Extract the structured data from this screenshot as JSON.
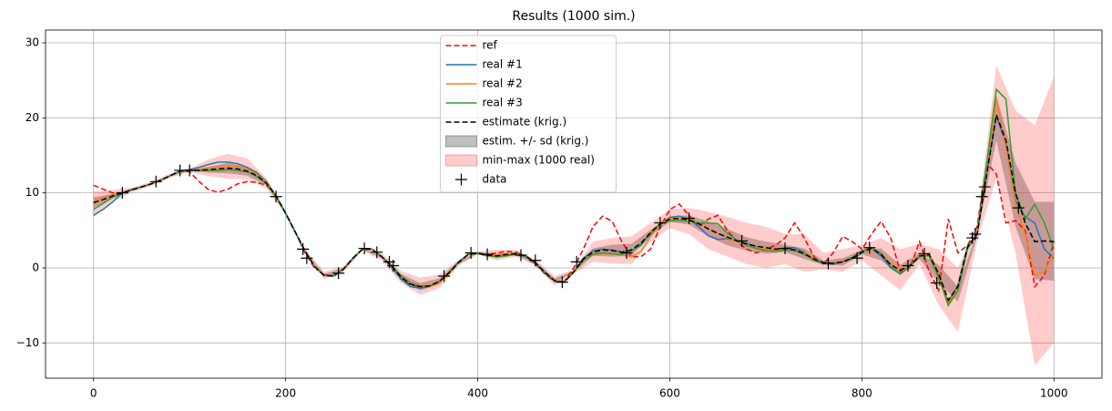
{
  "chart_data": {
    "type": "line",
    "title": "Results (1000 sim.)",
    "x": [
      0,
      10,
      20,
      30,
      40,
      50,
      60,
      70,
      80,
      90,
      100,
      110,
      120,
      130,
      140,
      150,
      160,
      170,
      180,
      190,
      200,
      210,
      220,
      230,
      240,
      250,
      260,
      270,
      280,
      290,
      300,
      310,
      320,
      330,
      340,
      350,
      360,
      370,
      380,
      390,
      400,
      410,
      420,
      430,
      440,
      450,
      460,
      470,
      480,
      490,
      500,
      510,
      520,
      530,
      540,
      550,
      560,
      570,
      580,
      590,
      600,
      610,
      620,
      630,
      640,
      650,
      660,
      670,
      680,
      690,
      700,
      710,
      720,
      730,
      740,
      750,
      760,
      770,
      780,
      790,
      800,
      810,
      820,
      830,
      840,
      850,
      860,
      870,
      880,
      890,
      900,
      910,
      920,
      930,
      940,
      950,
      960,
      970,
      980,
      990,
      1000
    ],
    "series": [
      {
        "name": "ref",
        "color": "#ff0000",
        "linestyle": "dashed",
        "values": [
          11,
          10.5,
          10,
          10,
          10.4,
          10.8,
          11.2,
          11.7,
          12.3,
          13,
          12.8,
          11.5,
          10.4,
          10.1,
          10.5,
          11.2,
          11.5,
          11.4,
          11,
          9.6,
          7.3,
          4.8,
          2.0,
          0,
          -0.9,
          -1.0,
          -0.2,
          1.3,
          2.5,
          2.5,
          1.5,
          0.2,
          -1.4,
          -2.3,
          -2.5,
          -2.4,
          -1.8,
          -0.6,
          0.8,
          1.8,
          1.9,
          1.8,
          2,
          2.2,
          2.1,
          1.5,
          0.5,
          -0.8,
          -1.8,
          -1.8,
          0,
          2.5,
          5.5,
          6.9,
          6.2,
          3.5,
          1.5,
          1.5,
          2.5,
          5.5,
          7.8,
          8.5,
          7.0,
          5.5,
          6.5,
          7.0,
          5.0,
          3.5,
          2.5,
          2.0,
          2.5,
          3.0,
          4.0,
          6.0,
          4.0,
          1.5,
          0.5,
          2.0,
          4.2,
          3.5,
          2.5,
          4.5,
          6.2,
          4.0,
          -0.5,
          0,
          3.5,
          -0.5,
          -3.0,
          6.5,
          2.0,
          3.0,
          5.5,
          14,
          12.5,
          6,
          6.3,
          5,
          -2.5,
          -1,
          3.5
        ]
      },
      {
        "name": "real #1",
        "color": "#1f77b4",
        "linestyle": "solid",
        "values": [
          7.0,
          7.8,
          8.8,
          10,
          10.5,
          10.8,
          11.2,
          11.7,
          12.3,
          12.9,
          13.1,
          13.4,
          13.8,
          14.1,
          14.1,
          13.9,
          13.4,
          12.7,
          11.5,
          9.6,
          7.2,
          4.7,
          2.3,
          0.2,
          -1.0,
          -1.0,
          -0.2,
          1.3,
          2.5,
          2.5,
          1.5,
          0.2,
          -1.5,
          -2.5,
          -2.7,
          -2.5,
          -1.8,
          -0.6,
          0.8,
          1.8,
          2.0,
          1.7,
          1.5,
          1.7,
          1.8,
          1.5,
          0.6,
          -0.7,
          -1.7,
          -1.9,
          -0.5,
          1.3,
          2.3,
          2.5,
          2.4,
          2.1,
          2.3,
          3.0,
          4.5,
          5.9,
          6.7,
          6.9,
          6.5,
          5.5,
          4.3,
          3.8,
          3.9,
          3.6,
          3.3,
          2.8,
          2.4,
          2.4,
          2.7,
          2.7,
          2.1,
          1.0,
          0.6,
          0.5,
          0.8,
          1.2,
          2.0,
          2.6,
          1.6,
          0.0,
          -0.8,
          0.2,
          1.5,
          1.7,
          -1.2,
          -4.5,
          -2.3,
          2.9,
          4.4,
          12.5,
          20.3,
          16.5,
          9.0,
          6.8,
          6.0,
          2.5,
          1.3
        ]
      },
      {
        "name": "real #2",
        "color": "#ff7f0e",
        "linestyle": "solid",
        "values": [
          9.0,
          9.3,
          9.7,
          10,
          10.4,
          10.8,
          11.2,
          11.7,
          12.3,
          12.9,
          13.0,
          13.1,
          13.3,
          13.5,
          13.6,
          13.5,
          13.2,
          12.5,
          11.4,
          9.6,
          7.3,
          4.8,
          2.3,
          0.2,
          -1.0,
          -1.1,
          -0.2,
          1.3,
          2.5,
          2.5,
          1.5,
          0.3,
          -1.1,
          -2.0,
          -2.4,
          -2.5,
          -2.0,
          -0.8,
          0.7,
          1.8,
          2.0,
          1.7,
          1.7,
          1.9,
          1.9,
          1.6,
          0.7,
          -0.6,
          -1.7,
          -1.9,
          -0.5,
          1.1,
          1.9,
          2.1,
          2.0,
          1.7,
          1.5,
          2.2,
          4.2,
          5.9,
          6.6,
          6.6,
          6.5,
          6.0,
          5.3,
          4.6,
          4.0,
          3.5,
          3.1,
          2.7,
          2.5,
          2.3,
          2.5,
          2.4,
          2.0,
          1.3,
          0.7,
          0.7,
          0.9,
          1.4,
          2.1,
          2.5,
          1.9,
          0.6,
          -0.2,
          0.3,
          1.6,
          1.9,
          -0.6,
          -4.8,
          -2.6,
          2.6,
          4.5,
          13.5,
          22.5,
          16,
          8.5,
          4.5,
          -1.0,
          -0.5,
          2.0
        ]
      },
      {
        "name": "real #3",
        "color": "#2ca02c",
        "linestyle": "solid",
        "values": [
          7.8,
          8.6,
          9.4,
          10,
          10.4,
          10.8,
          11.2,
          11.7,
          12.3,
          12.9,
          13.0,
          13.0,
          13.0,
          13.0,
          13.1,
          13.0,
          12.8,
          12.2,
          11.2,
          9.6,
          7.3,
          4.8,
          2.3,
          0.2,
          -1.0,
          -1.1,
          -0.2,
          1.3,
          2.5,
          2.5,
          1.5,
          0.4,
          -1.0,
          -2.0,
          -2.4,
          -2.4,
          -1.8,
          -0.7,
          0.7,
          1.8,
          1.9,
          1.6,
          1.5,
          1.6,
          1.8,
          1.6,
          0.7,
          -0.6,
          -1.7,
          -1.9,
          -0.6,
          1.0,
          1.8,
          2.0,
          1.9,
          1.8,
          2.2,
          3.2,
          4.6,
          5.8,
          6.3,
          6.3,
          6.2,
          6.0,
          6.0,
          5.9,
          4.6,
          3.7,
          3.0,
          2.6,
          2.3,
          2.2,
          2.4,
          2.3,
          1.8,
          1.1,
          0.7,
          0.6,
          0.8,
          1.4,
          2.3,
          2.7,
          1.9,
          0.2,
          -0.8,
          0.3,
          1.5,
          1.6,
          -1.3,
          -5.0,
          -3.0,
          2.5,
          4.6,
          14,
          23.8,
          22.5,
          10,
          6.5,
          8.5,
          6.0,
          2.5
        ]
      },
      {
        "name": "estimate (krig.)",
        "color": "#000000",
        "linestyle": "dashed",
        "values": [
          8.7,
          9.1,
          9.6,
          10,
          10.4,
          10.8,
          11.2,
          11.7,
          12.3,
          12.9,
          13.0,
          13.0,
          13.1,
          13.2,
          13.3,
          13.2,
          12.9,
          12.3,
          11.3,
          9.6,
          7.3,
          4.8,
          2.3,
          0.2,
          -1.0,
          -1.1,
          -0.2,
          1.3,
          2.5,
          2.5,
          1.5,
          0.3,
          -1.2,
          -2.2,
          -2.5,
          -2.4,
          -1.8,
          -0.7,
          0.7,
          1.8,
          2.0,
          1.7,
          1.6,
          1.8,
          1.9,
          1.6,
          0.7,
          -0.6,
          -1.7,
          -1.9,
          -0.5,
          1.2,
          2.1,
          2.4,
          2.3,
          2.1,
          2.4,
          3.3,
          4.7,
          5.9,
          6.5,
          6.6,
          6.4,
          5.9,
          5.2,
          4.6,
          4.1,
          3.6,
          3.2,
          2.9,
          2.7,
          2.5,
          2.6,
          2.4,
          1.9,
          1.2,
          0.7,
          0.6,
          0.8,
          1.3,
          2.1,
          2.6,
          1.8,
          0.4,
          -0.3,
          0.3,
          1.6,
          1.8,
          -0.8,
          -4.3,
          -2.5,
          2.8,
          4.5,
          12.5,
          20.4,
          17,
          10,
          6,
          3.5,
          3.6,
          3.5
        ]
      }
    ],
    "bands": [
      {
        "name": "estim.  +/- sd (krig.)",
        "color": "#808080",
        "alpha": 0.5,
        "x": [
          0,
          20,
          40,
          60,
          80,
          100,
          120,
          140,
          160,
          180,
          200,
          220,
          240,
          260,
          280,
          300,
          320,
          340,
          360,
          380,
          400,
          420,
          440,
          460,
          480,
          500,
          520,
          540,
          560,
          580,
          600,
          620,
          640,
          660,
          680,
          700,
          720,
          740,
          760,
          780,
          800,
          820,
          840,
          860,
          880,
          900,
          920,
          940,
          960,
          980,
          1000
        ],
        "lower": [
          8.0,
          9.3,
          10.3,
          11.1,
          12.2,
          12.9,
          12.7,
          12.6,
          12.3,
          11.0,
          7.2,
          2.2,
          -1.2,
          -0.4,
          2.4,
          1.3,
          -1.6,
          -3.0,
          -2.2,
          0.5,
          1.9,
          1.3,
          1.7,
          0.5,
          -2.0,
          -0.6,
          1.6,
          1.5,
          1.6,
          4.3,
          6.1,
          5.8,
          4.2,
          3.0,
          2.3,
          1.9,
          2.1,
          1.2,
          0.4,
          0.3,
          1.8,
          1.0,
          -1.0,
          1.2,
          -2.0,
          -4.5,
          4.2,
          17,
          5.5,
          -1.5,
          -1.7
        ],
        "upper": [
          9.4,
          9.9,
          10.5,
          11.3,
          12.4,
          13.1,
          13.5,
          14.0,
          13.5,
          11.6,
          7.4,
          2.4,
          -0.8,
          0,
          2.6,
          1.7,
          -0.8,
          -2.0,
          -1.4,
          0.9,
          2.1,
          1.9,
          2.1,
          0.9,
          -1.4,
          -0.4,
          2.6,
          3.1,
          3.2,
          5.1,
          6.9,
          7.0,
          6.2,
          5.2,
          4.1,
          3.5,
          3.1,
          2.6,
          1.0,
          1.3,
          2.4,
          2.6,
          0.4,
          2.0,
          0.4,
          -2.5,
          4.8,
          23,
          14,
          8.8,
          8.8
        ]
      },
      {
        "name": "min-max (1000 real)",
        "color": "#ff0000",
        "alpha": 0.2,
        "x": [
          0,
          20,
          40,
          60,
          80,
          100,
          120,
          140,
          160,
          180,
          200,
          220,
          240,
          260,
          280,
          300,
          320,
          340,
          360,
          380,
          400,
          420,
          440,
          460,
          480,
          500,
          520,
          540,
          560,
          580,
          600,
          620,
          640,
          660,
          680,
          700,
          720,
          740,
          760,
          780,
          800,
          820,
          840,
          860,
          880,
          900,
          920,
          940,
          960,
          980,
          1000
        ],
        "lower": [
          6.8,
          8.8,
          10.1,
          10.9,
          12.0,
          12.8,
          12.2,
          11.9,
          11.8,
          10.6,
          7.1,
          2.1,
          -1.5,
          -0.6,
          2.3,
          1.0,
          -2.0,
          -3.6,
          -2.7,
          0.3,
          1.8,
          1.0,
          1.5,
          0.3,
          -2.3,
          -0.8,
          0.8,
          0.6,
          0.5,
          3.5,
          5.3,
          4.5,
          2.5,
          1.5,
          0.5,
          0.0,
          0.5,
          -0.5,
          -0.2,
          -0.5,
          1.0,
          -1.0,
          -3.0,
          0.5,
          -5.0,
          -8.5,
          3.5,
          12,
          2,
          -13,
          -10
        ],
        "upper": [
          10.2,
          10.4,
          10.7,
          11.5,
          12.6,
          13.2,
          14.5,
          15.2,
          14.6,
          12.0,
          7.5,
          2.5,
          -0.5,
          0.2,
          2.7,
          2.0,
          -0.4,
          -1.3,
          -0.9,
          1.1,
          2.2,
          2.4,
          2.4,
          1.1,
          -1.1,
          -0.2,
          3.5,
          4.0,
          4.2,
          6.0,
          7.8,
          8.0,
          7.5,
          6.8,
          6.0,
          5.5,
          4.5,
          4.5,
          2.0,
          2.5,
          3.0,
          4.0,
          2.5,
          3.2,
          2.5,
          0.0,
          5.8,
          27,
          21,
          19,
          25.5
        ]
      }
    ],
    "scatter": {
      "name": "data",
      "color": "#000000",
      "marker": "+",
      "x": [
        30,
        65,
        90,
        100,
        190,
        218,
        222,
        255,
        282,
        295,
        308,
        312,
        365,
        393,
        410,
        445,
        460,
        488,
        503,
        555,
        590,
        620,
        675,
        720,
        765,
        795,
        808,
        848,
        865,
        878,
        915,
        918,
        925,
        928,
        963
      ],
      "y": [
        10,
        11.5,
        13,
        13,
        9.5,
        2.5,
        1.3,
        -0.7,
        2.6,
        2.1,
        0.8,
        0.3,
        -1.1,
        2.0,
        1.8,
        1.7,
        1.0,
        -1.9,
        0.8,
        2.0,
        6.0,
        6.6,
        3.6,
        2.6,
        0.6,
        1.3,
        2.7,
        0.3,
        1.9,
        -2.0,
        4.0,
        4.5,
        9.5,
        10.8,
        8.0
      ]
    },
    "xlim": [
      -50,
      1050
    ],
    "ylim": [
      -14.7,
      31.7
    ],
    "xticks": [
      0,
      200,
      400,
      600,
      800,
      1000
    ],
    "yticks": [
      {
        "value": -10,
        "label": "−10"
      },
      0,
      10,
      20,
      30
    ],
    "grid": true,
    "legend": "upper center"
  }
}
